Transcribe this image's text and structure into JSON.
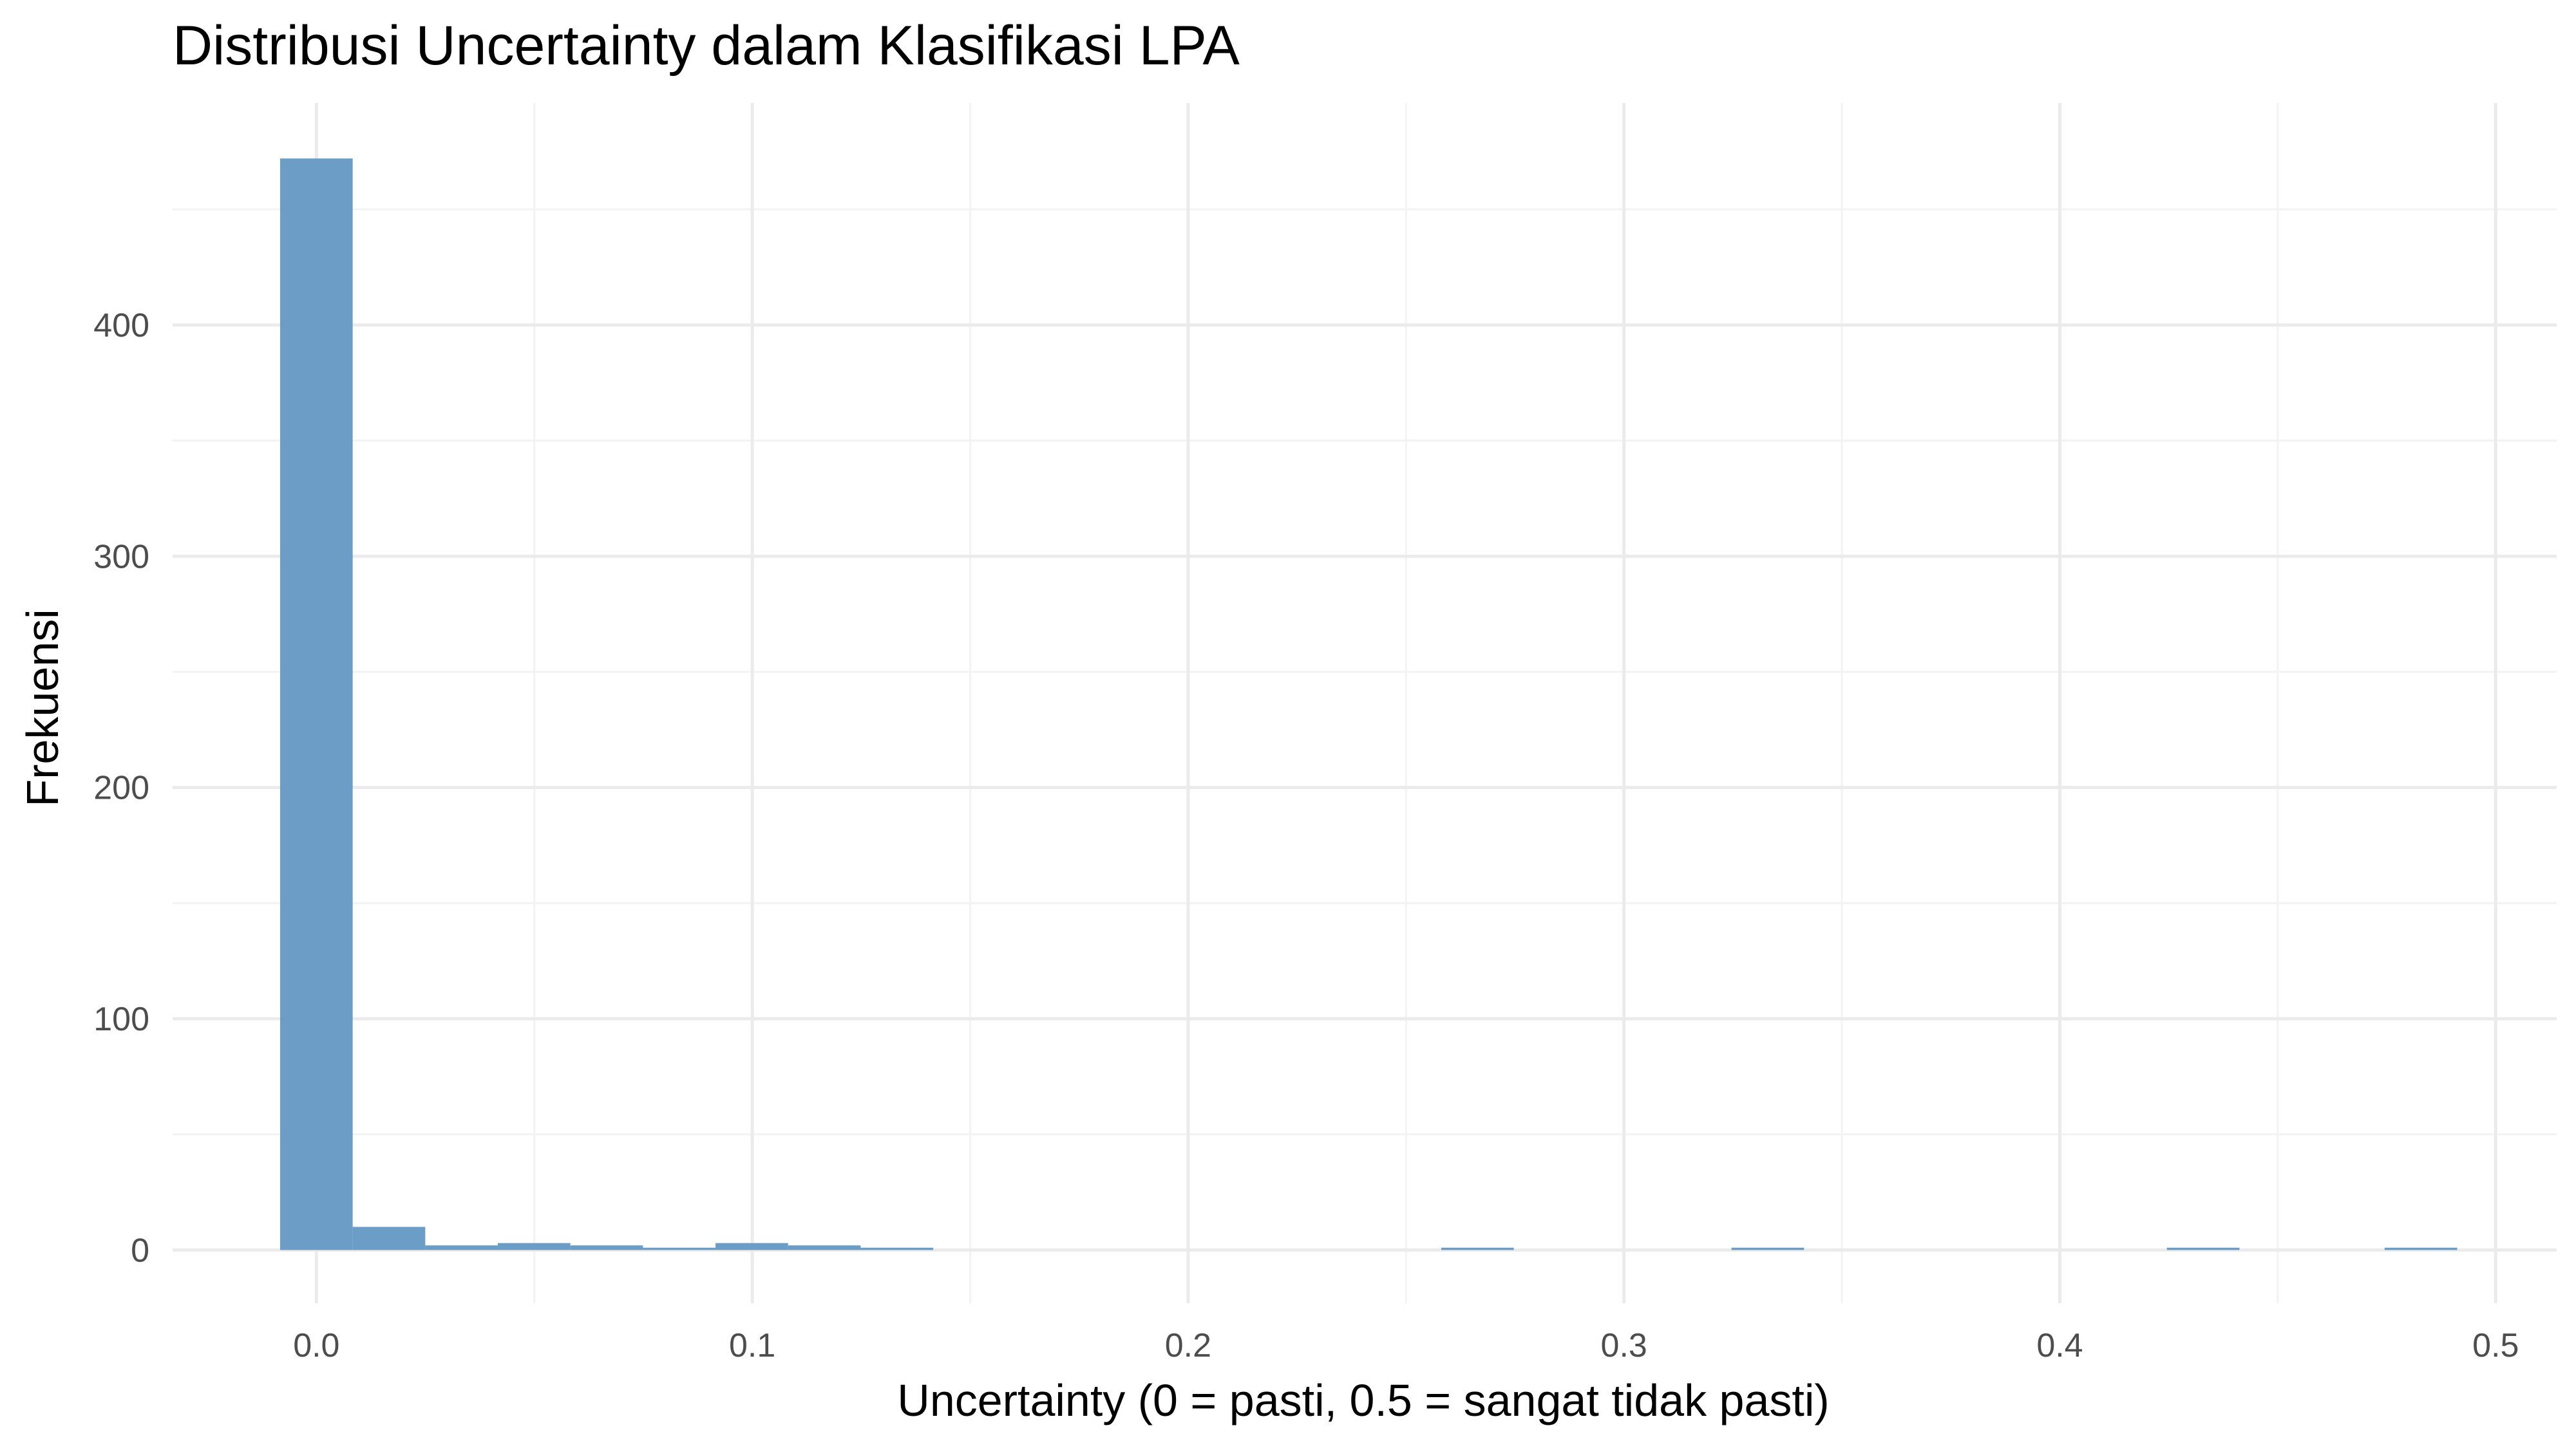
{
  "chart_data": {
    "type": "bar",
    "title": "Distribusi Uncertainty dalam Klasifikasi LPA",
    "xlabel": "Uncertainty (0 = pasti, 0.5 = sangat tidak pasti)",
    "ylabel": "Frekuensi",
    "xlim": [
      -0.033,
      0.514
    ],
    "ylim": [
      -23,
      496
    ],
    "x_ticks": [
      0.0,
      0.1,
      0.2,
      0.3,
      0.4,
      0.5
    ],
    "x_tick_labels": [
      "0.0",
      "0.1",
      "0.2",
      "0.3",
      "0.4",
      "0.5"
    ],
    "y_ticks": [
      0,
      100,
      200,
      300,
      400
    ],
    "y_tick_labels": [
      "0",
      "100",
      "200",
      "300",
      "400"
    ],
    "bin_width": 0.01665,
    "bins": [
      {
        "x0": -0.00833,
        "x1": 0.00832,
        "count": 472
      },
      {
        "x0": 0.00832,
        "x1": 0.02497,
        "count": 10
      },
      {
        "x0": 0.02497,
        "x1": 0.04162,
        "count": 2
      },
      {
        "x0": 0.04162,
        "x1": 0.05827,
        "count": 3
      },
      {
        "x0": 0.05827,
        "x1": 0.07492,
        "count": 2
      },
      {
        "x0": 0.07492,
        "x1": 0.09157,
        "count": 1
      },
      {
        "x0": 0.09157,
        "x1": 0.10822,
        "count": 3
      },
      {
        "x0": 0.10822,
        "x1": 0.12487,
        "count": 2
      },
      {
        "x0": 0.12487,
        "x1": 0.14152,
        "count": 1
      },
      {
        "x0": 0.25807,
        "x1": 0.27472,
        "count": 1
      },
      {
        "x0": 0.32467,
        "x1": 0.34132,
        "count": 1
      },
      {
        "x0": 0.42457,
        "x1": 0.44122,
        "count": 1
      },
      {
        "x0": 0.47452,
        "x1": 0.49117,
        "count": 1
      }
    ],
    "grid": true,
    "colors": {
      "bar": "#6c9dc6",
      "grid_major": "#ebebeb",
      "grid_minor": "#f3f3f3"
    }
  }
}
